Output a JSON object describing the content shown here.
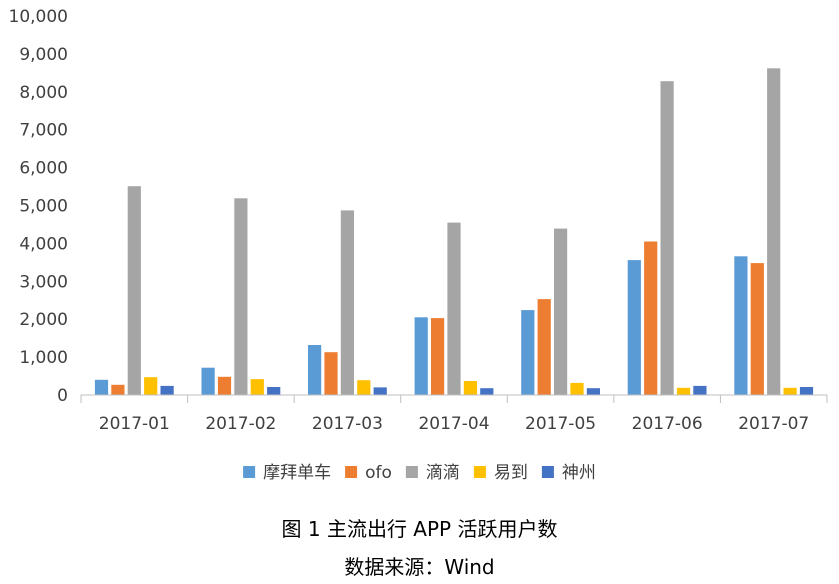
{
  "caption": {
    "title": "图 1  主流出行 APP 活跃用户数",
    "source": "数据来源：Wind"
  },
  "chart_data": {
    "type": "bar",
    "categories": [
      "2017-01",
      "2017-02",
      "2017-03",
      "2017-04",
      "2017-05",
      "2017-06",
      "2017-07"
    ],
    "series": [
      {
        "name": "摩拜单车",
        "color": "#5B9BD5",
        "values": [
          400,
          720,
          1320,
          2050,
          2240,
          3560,
          3660
        ]
      },
      {
        "name": "ofo",
        "color": "#ED7D31",
        "values": [
          270,
          480,
          1130,
          2030,
          2530,
          4050,
          3480
        ]
      },
      {
        "name": "滴滴",
        "color": "#A5A5A5",
        "values": [
          5510,
          5190,
          4870,
          4550,
          4390,
          8280,
          8620
        ]
      },
      {
        "name": "易到",
        "color": "#FFC000",
        "values": [
          470,
          420,
          390,
          370,
          320,
          190,
          190
        ]
      },
      {
        "name": "神州",
        "color": "#4472C4",
        "values": [
          240,
          210,
          200,
          180,
          180,
          240,
          210
        ]
      }
    ],
    "ylim": [
      0,
      10000
    ],
    "yticks": [
      "0",
      "1,000",
      "2,000",
      "3,000",
      "4,000",
      "5,000",
      "6,000",
      "7,000",
      "8,000",
      "9,000",
      "10,000"
    ],
    "grid": false,
    "legend": "bottom",
    "xlabel": "",
    "ylabel": ""
  }
}
